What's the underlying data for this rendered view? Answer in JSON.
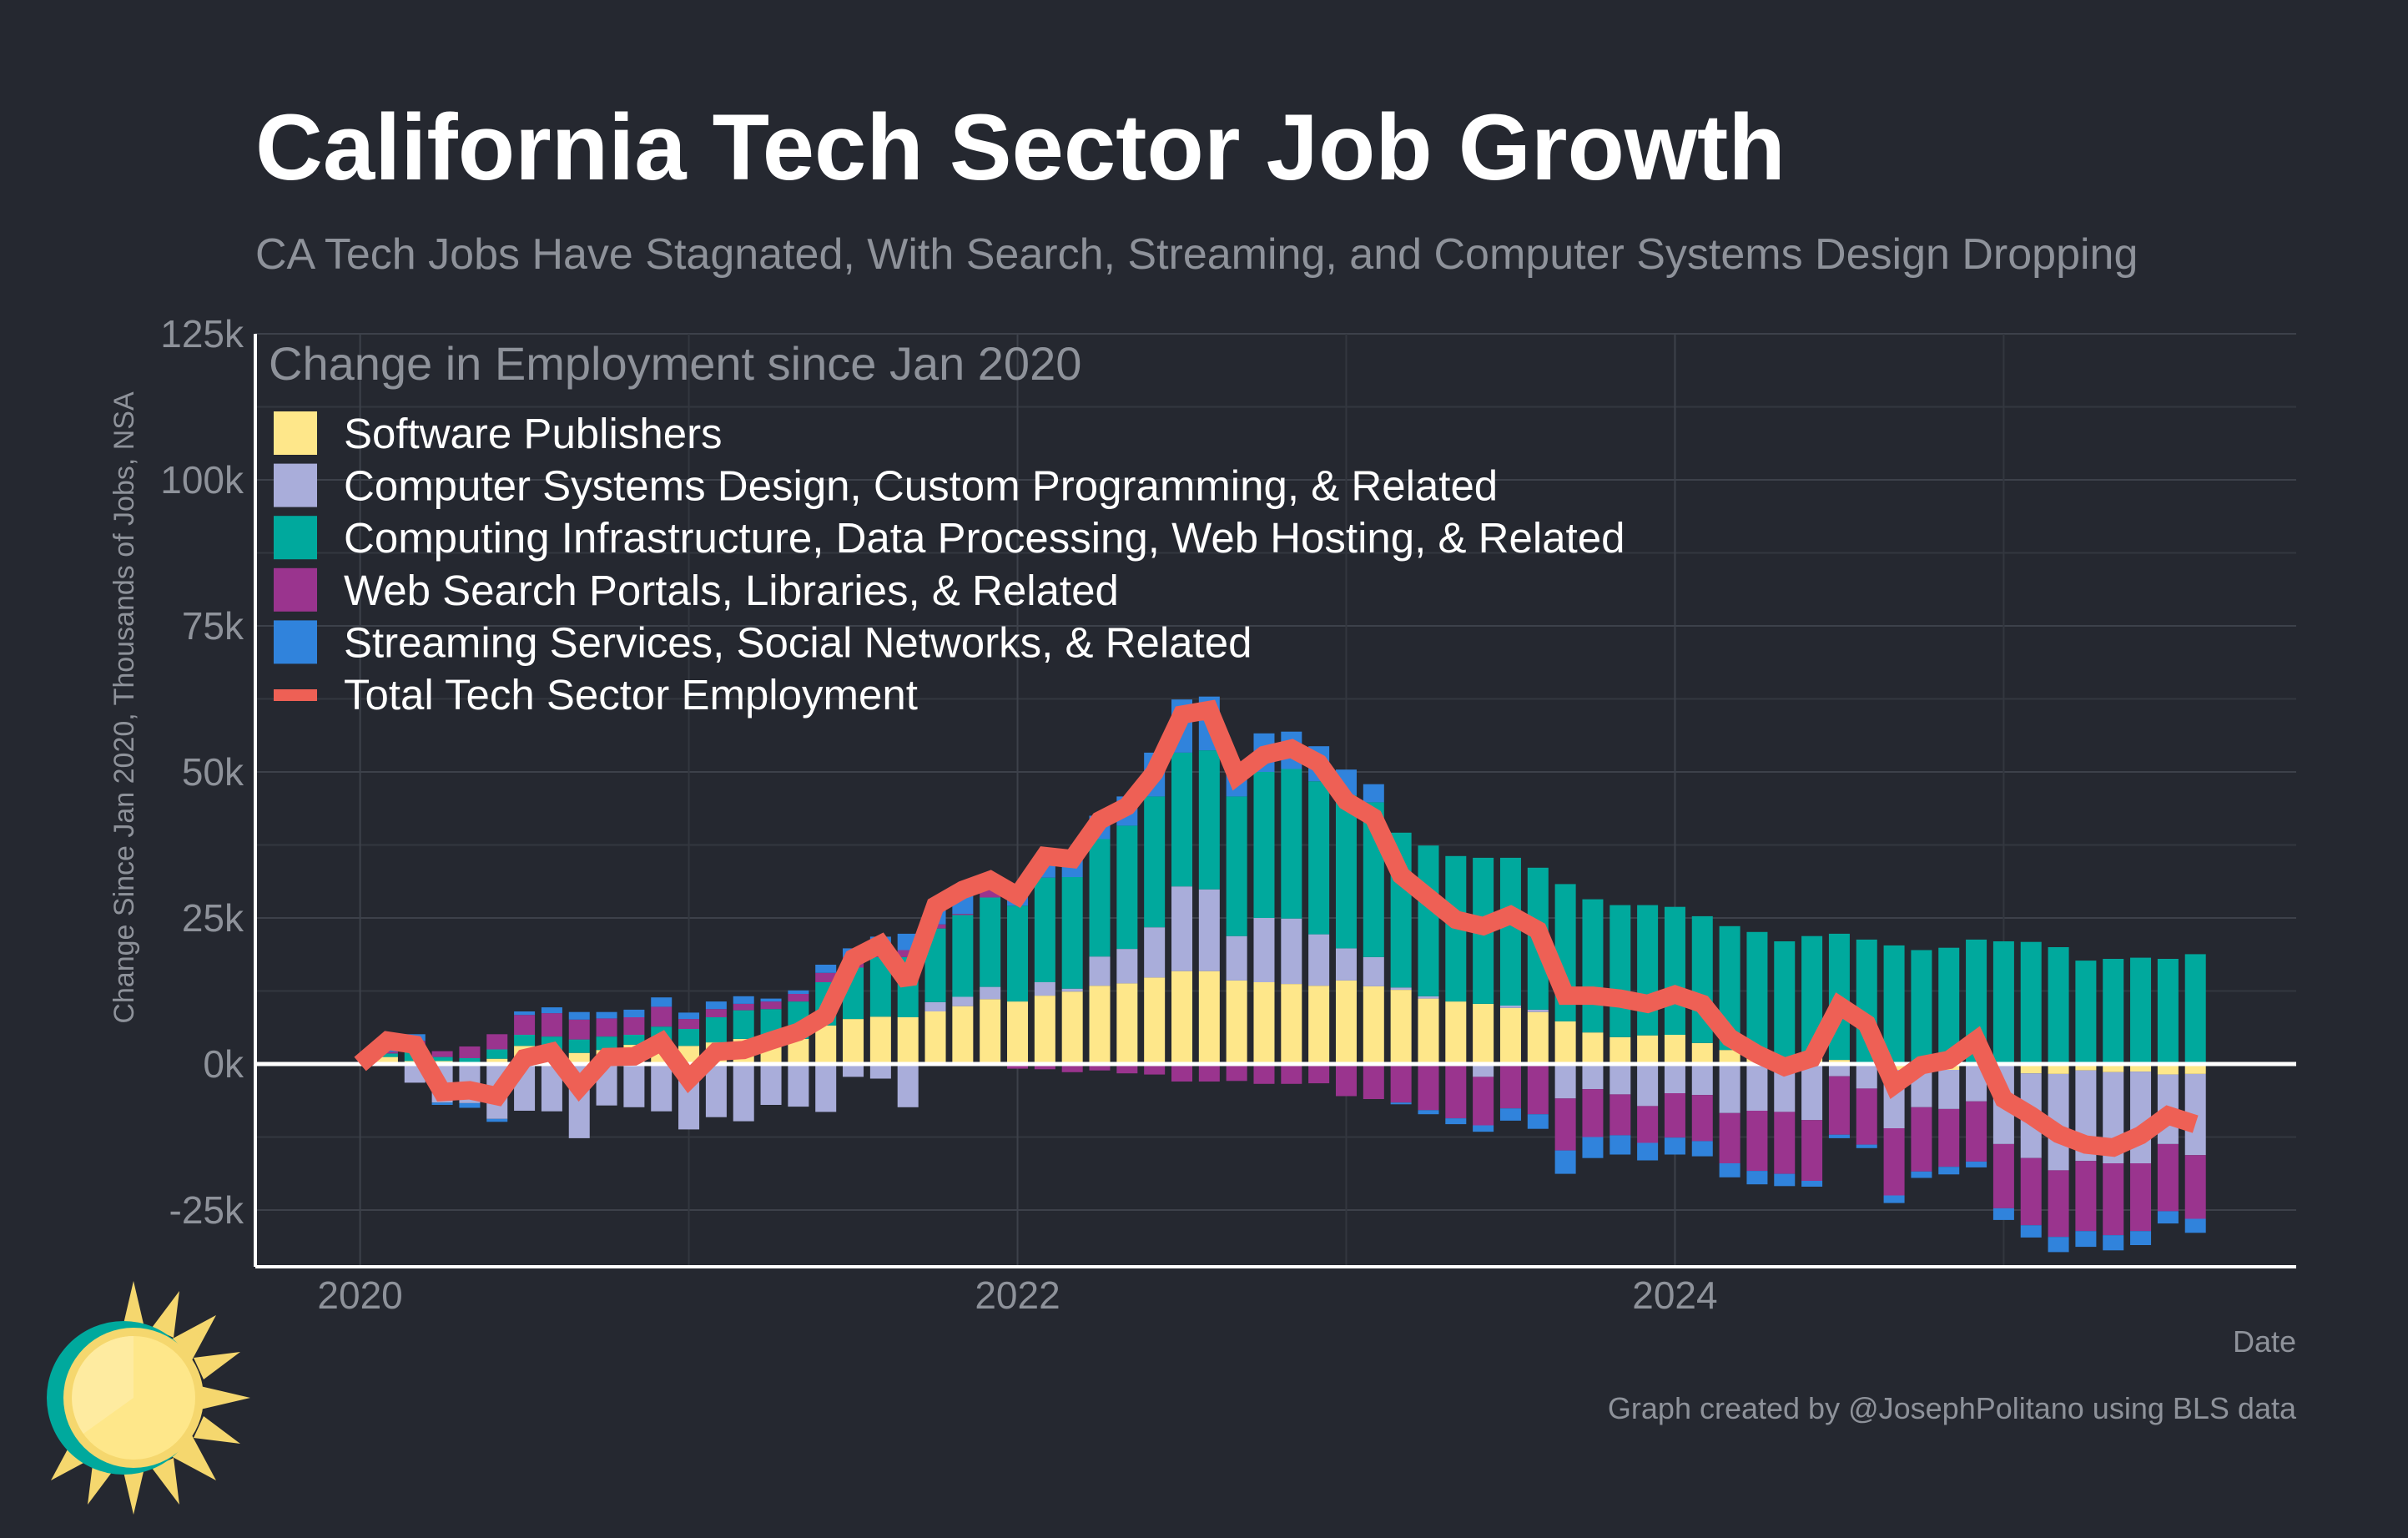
{
  "chart_data": {
    "type": "bar",
    "stacked": true,
    "title": "California Tech Sector Job Growth",
    "subtitle": "CA Tech Jobs Have Stagnated, With Search, Streaming, and Computer Systems Design Dropping",
    "legend_title": "Change in Employment since Jan 2020",
    "legend_placement": "top-left",
    "xlabel": "Date",
    "ylabel": "Change Since Jan 2020, Thousands of Jobs, NSA",
    "credit": "Graph created by @JosephPolitano using BLS data",
    "ylim": [
      -30,
      125
    ],
    "y_ticks": [
      -25,
      0,
      25,
      50,
      75,
      100,
      125
    ],
    "y_tick_labels": [
      "-25k",
      "0k",
      "25k",
      "50k",
      "75k",
      "100k",
      "125k"
    ],
    "x_ticks": [
      2020,
      2022,
      2024
    ],
    "x_tick_labels": [
      "2020",
      "2022",
      "2024"
    ],
    "x_start": "2020-01",
    "x_unit": "month",
    "grid": true,
    "colors": {
      "software": "#FEE78A",
      "csd": "#A9ADDA",
      "infra": "#00A99D",
      "search": "#9A348E",
      "streaming": "#3083DC",
      "total": "#EE6055"
    },
    "series": [
      {
        "key": "software",
        "name": "Software Publishers",
        "values": [
          0,
          1.2,
          0.5,
          0.5,
          0.2,
          0.9,
          3.1,
          2.4,
          1.9,
          2.4,
          3.3,
          3.3,
          3.1,
          3.7,
          4.3,
          4.8,
          4.3,
          6.6,
          7.7,
          8.1,
          8.0,
          9.0,
          9.9,
          11.1,
          10.7,
          11.7,
          12.4,
          13.4,
          13.8,
          14.8,
          15.9,
          15.9,
          14.3,
          14.0,
          13.7,
          13.4,
          14.3,
          13.3,
          12.7,
          11.2,
          10.7,
          10.3,
          9.6,
          8.9,
          7.3,
          5.4,
          4.6,
          4.9,
          5.0,
          3.6,
          2.4,
          1.2,
          0.3,
          1.0,
          0.7,
          0.1,
          -1.0,
          0,
          -1.0,
          0,
          0,
          -1.6,
          -1.7,
          -1.1,
          -1.4,
          -1.3,
          -1.8,
          -1.7
        ]
      },
      {
        "key": "csd",
        "name": "Computer Systems Design, Custom Programming, & Related",
        "values": [
          0,
          0,
          -3.2,
          -6.6,
          -6.7,
          -9.4,
          -8.0,
          -8.1,
          -12.7,
          -7.1,
          -7.4,
          -8.1,
          -11.2,
          -9.1,
          -9.8,
          -7.0,
          -7.3,
          -8.2,
          -2.2,
          -2.5,
          -7.4,
          1.6,
          1.6,
          2.1,
          -0.3,
          2.3,
          0.5,
          5.0,
          5.9,
          8.6,
          14.5,
          14.0,
          7.6,
          11.0,
          11.2,
          8.8,
          5.5,
          5.0,
          0.4,
          0.4,
          0,
          -2.2,
          0.4,
          0.4,
          -5.9,
          -4.3,
          -5.2,
          -7.2,
          -5.0,
          -5.3,
          -8.4,
          -8.0,
          -8.2,
          -9.6,
          -2.1,
          -4.2,
          -10.0,
          -7.4,
          -6.7,
          -6.4,
          -13.7,
          -14.5,
          -16.5,
          -15.5,
          -15.6,
          -15.7,
          -11.9,
          -13.9
        ]
      },
      {
        "key": "infra",
        "name": "Computing Infrastructure, Data Processing, Web Hosting, & Related",
        "values": [
          0,
          0.6,
          2.0,
          0.7,
          0.8,
          1.6,
          1.9,
          2.3,
          2.3,
          2.3,
          1.7,
          3.1,
          2.9,
          4.3,
          4.9,
          4.6,
          6.4,
          7.4,
          8.8,
          10.2,
          10.3,
          12.6,
          14.0,
          15.3,
          16.4,
          17.9,
          19.1,
          20.1,
          21.1,
          22.4,
          22.9,
          23.8,
          23.9,
          25.0,
          25.6,
          26.2,
          26.2,
          26.5,
          26.5,
          25.8,
          24.9,
          25.0,
          25.3,
          24.3,
          23.5,
          22.8,
          22.6,
          22.3,
          21.9,
          21.7,
          21.2,
          21.4,
          20.7,
          20.9,
          21.6,
          21.2,
          20.3,
          19.5,
          19.9,
          21.3,
          21.0,
          20.9,
          20.0,
          17.7,
          18.0,
          18.2,
          18.0,
          18.8
        ]
      },
      {
        "key": "search",
        "name": "Web Search Portals, Libraries, & Related",
        "values": [
          0,
          0.3,
          1.5,
          1.0,
          2.0,
          2.6,
          3.4,
          4.0,
          3.4,
          3.1,
          3.0,
          3.4,
          1.7,
          1.4,
          1.1,
          1.3,
          1.3,
          1.6,
          1.8,
          1.2,
          1.2,
          0.7,
          0.2,
          1.5,
          -0.5,
          -0.9,
          -1.4,
          -1.1,
          -1.6,
          -1.8,
          -3.0,
          -3.0,
          -2.9,
          -3.4,
          -3.4,
          -3.3,
          -5.5,
          -6.0,
          -6.6,
          -7.9,
          -9.3,
          -8.3,
          -7.6,
          -8.6,
          -8.9,
          -8.2,
          -7.0,
          -6.3,
          -7.6,
          -7.9,
          -8.6,
          -10.3,
          -10.6,
          -10.4,
          -10.0,
          -9.6,
          -11.5,
          -11.0,
          -9.9,
          -10.3,
          -11.0,
          -11.5,
          -11.4,
          -12.0,
          -12.3,
          -11.6,
          -11.5,
          -10.9
        ]
      },
      {
        "key": "streaming",
        "name": "Streaming Services, Social Networks, & Related",
        "values": [
          0,
          0.3,
          1.1,
          -0.4,
          -0.8,
          -0.5,
          0.6,
          1.0,
          1.3,
          1.1,
          1.3,
          1.6,
          1.1,
          1.3,
          1.3,
          0.5,
          0.6,
          1.4,
          1.5,
          2.3,
          2.8,
          2.7,
          3.7,
          1.5,
          2.5,
          3.7,
          4.1,
          4.0,
          5.0,
          7.5,
          9.1,
          9.2,
          5.2,
          6.6,
          6.4,
          6.0,
          4.4,
          3.1,
          -0.3,
          -0.7,
          -1.0,
          -1.1,
          -2.1,
          -2.5,
          -4.0,
          -3.6,
          -3.3,
          -3.0,
          -2.9,
          -2.6,
          -2.4,
          -2.3,
          -2.1,
          -1.0,
          -0.6,
          -0.6,
          -1.3,
          -1.1,
          -1.3,
          -1.0,
          -2.0,
          -2.1,
          -2.6,
          -2.7,
          -2.6,
          -2.4,
          -2.1,
          -2.4
        ]
      }
    ],
    "line": {
      "key": "total",
      "name": "Total Tech Sector Employment",
      "values": [
        0,
        4.0,
        3.3,
        -4.8,
        -4.5,
        -5.5,
        1.0,
        2.1,
        -4.0,
        1.2,
        1.3,
        3.8,
        -2.6,
        2.1,
        2.4,
        4.0,
        5.5,
        8.3,
        18.1,
        20.5,
        14.0,
        27.1,
        29.8,
        31.5,
        28.8,
        35.6,
        35.1,
        41.7,
        44.1,
        49.9,
        59.8,
        60.6,
        49.3,
        52.9,
        54.0,
        51.5,
        45.0,
        42.2,
        32.3,
        28.5,
        24.7,
        23.6,
        25.5,
        22.9,
        11.7,
        11.7,
        11.2,
        10.3,
        11.9,
        10.3,
        4.5,
        1.7,
        -0.5,
        1.0,
        10.0,
        6.9,
        -3.6,
        -0.2,
        0.7,
        4.1,
        -6.0,
        -8.8,
        -12.0,
        -13.8,
        -14.3,
        -12.2,
        -8.8,
        -10.3
      ]
    }
  }
}
